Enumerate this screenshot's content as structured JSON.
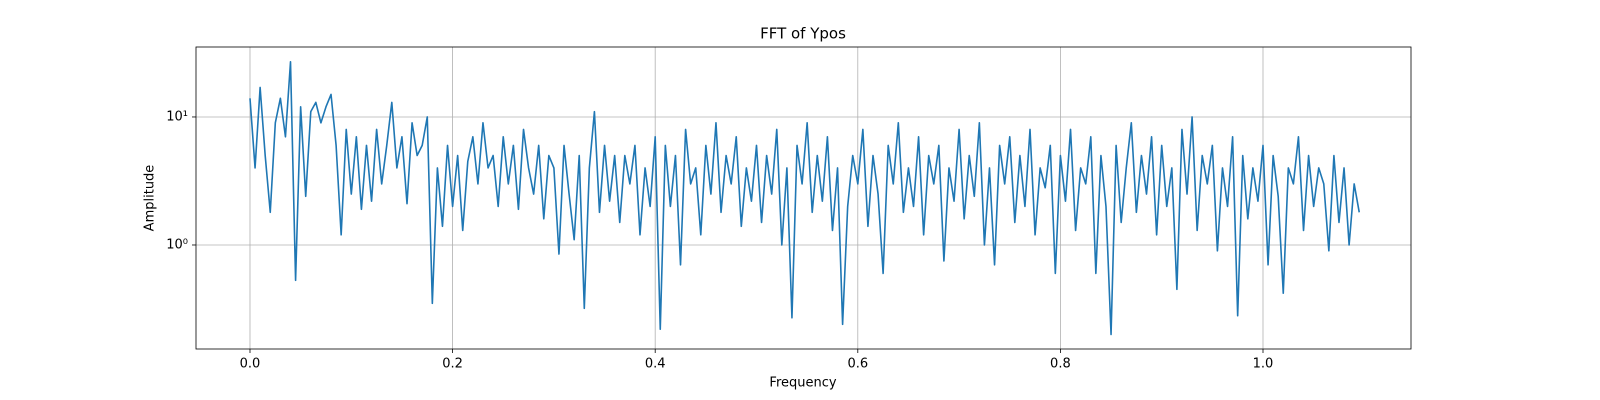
{
  "chart_data": {
    "type": "line",
    "title": "FFT of Ypos",
    "x_label": "Frequency",
    "y_label": "Amplitude",
    "color": "#1f77b4",
    "grid": true,
    "yscale": "log",
    "xlim": [
      -0.0533,
      1.1461
    ],
    "ylim": [
      0.154,
      35.2
    ],
    "xticks": [
      {
        "value": 0,
        "label": "0.0"
      },
      {
        "value": 0.2,
        "label": "0.2"
      },
      {
        "value": 0.4,
        "label": "0.4"
      },
      {
        "value": 0.6,
        "label": "0.6"
      },
      {
        "value": 0.8,
        "label": "0.8"
      },
      {
        "value": 1.0,
        "label": "1.0"
      }
    ],
    "yticks": [
      {
        "value": 1,
        "label": "10⁰"
      },
      {
        "value": 10,
        "label": "10¹"
      }
    ],
    "x": [
      0,
      0.005,
      0.01,
      0.015,
      0.02,
      0.025,
      0.03,
      0.035,
      0.04,
      0.045,
      0.05,
      0.055,
      0.06,
      0.065,
      0.07,
      0.075,
      0.08,
      0.085,
      0.09,
      0.095,
      0.1,
      0.105,
      0.11,
      0.115,
      0.12,
      0.125,
      0.13,
      0.135,
      0.14,
      0.145,
      0.15,
      0.155,
      0.16,
      0.165,
      0.17,
      0.175,
      0.18,
      0.185,
      0.19,
      0.195,
      0.2,
      0.205,
      0.21,
      0.215,
      0.22,
      0.225,
      0.23,
      0.235,
      0.24,
      0.245,
      0.25,
      0.255,
      0.26,
      0.265,
      0.27,
      0.275,
      0.28,
      0.285,
      0.29,
      0.295,
      0.3,
      0.305,
      0.31,
      0.315,
      0.32,
      0.325,
      0.33,
      0.335,
      0.34,
      0.345,
      0.35,
      0.355,
      0.36,
      0.365,
      0.37,
      0.375,
      0.38,
      0.385,
      0.39,
      0.395,
      0.4,
      0.405,
      0.41,
      0.415,
      0.42,
      0.425,
      0.43,
      0.435,
      0.44,
      0.445,
      0.45,
      0.455,
      0.46,
      0.465,
      0.47,
      0.475,
      0.48,
      0.485,
      0.49,
      0.495,
      0.5,
      0.505,
      0.51,
      0.515,
      0.52,
      0.525,
      0.53,
      0.535,
      0.54,
      0.545,
      0.55,
      0.555,
      0.56,
      0.565,
      0.57,
      0.575,
      0.58,
      0.585,
      0.59,
      0.595,
      0.6,
      0.605,
      0.61,
      0.615,
      0.62,
      0.625,
      0.63,
      0.635,
      0.64,
      0.645,
      0.65,
      0.655,
      0.66,
      0.665,
      0.67,
      0.675,
      0.68,
      0.685,
      0.69,
      0.695,
      0.7,
      0.705,
      0.71,
      0.715,
      0.72,
      0.725,
      0.73,
      0.735,
      0.74,
      0.745,
      0.75,
      0.755,
      0.76,
      0.765,
      0.77,
      0.775,
      0.78,
      0.785,
      0.79,
      0.795,
      0.8,
      0.805,
      0.81,
      0.815,
      0.82,
      0.825,
      0.83,
      0.835,
      0.84,
      0.845,
      0.85,
      0.855,
      0.86,
      0.865,
      0.87,
      0.875,
      0.88,
      0.885,
      0.89,
      0.895,
      0.9,
      0.905,
      0.91,
      0.915,
      0.92,
      0.925,
      0.93,
      0.935,
      0.94,
      0.945,
      0.95,
      0.955,
      0.96,
      0.965,
      0.97,
      0.975,
      0.98,
      0.985,
      0.99,
      0.995,
      1.0,
      1.005,
      1.01,
      1.015,
      1.02,
      1.025,
      1.03,
      1.035,
      1.04,
      1.045,
      1.05,
      1.055,
      1.06,
      1.065,
      1.07,
      1.075,
      1.08,
      1.085,
      1.09,
      1.095
    ],
    "values": [
      14,
      4,
      17,
      5,
      1.8,
      9,
      14,
      7,
      27,
      0.53,
      12,
      2.4,
      11,
      13,
      9,
      12,
      15,
      6,
      1.2,
      8,
      2.5,
      7,
      1.9,
      6,
      2.2,
      8,
      3,
      6,
      13,
      4,
      7,
      2.1,
      9,
      5,
      6,
      10,
      0.35,
      4,
      1.4,
      6,
      2,
      5,
      1.3,
      4.5,
      7,
      3,
      9,
      4,
      5,
      2,
      7,
      3,
      6,
      1.9,
      8,
      4,
      2.5,
      6,
      1.6,
      5,
      4,
      0.85,
      6,
      2.5,
      1.1,
      5,
      0.32,
      4,
      11,
      1.8,
      6,
      2.2,
      5,
      1.5,
      5,
      3,
      6,
      1.2,
      4,
      2,
      7,
      0.22,
      6,
      2,
      5,
      0.7,
      8,
      3,
      4,
      1.2,
      6,
      2.5,
      9,
      1.8,
      5,
      3,
      7,
      1.4,
      4,
      2.2,
      6,
      1.5,
      5,
      2.5,
      8,
      1,
      4,
      0.27,
      6,
      3,
      9,
      1.8,
      5,
      2.2,
      7,
      1.3,
      4,
      0.24,
      2,
      5,
      3,
      8,
      1.4,
      5,
      2.5,
      0.6,
      6,
      3,
      9,
      1.8,
      4,
      2,
      7,
      1.2,
      5,
      3,
      6,
      0.75,
      4,
      2.2,
      8,
      1.6,
      5,
      2.4,
      9,
      1,
      4,
      0.7,
      6,
      3,
      7,
      1.5,
      5,
      2,
      8,
      1.2,
      4,
      2.8,
      6,
      0.6,
      5,
      2.2,
      8,
      1.3,
      4,
      3,
      7,
      0.6,
      5,
      2,
      0.2,
      6,
      1.5,
      4,
      9,
      1.8,
      5,
      2.5,
      7,
      1.2,
      6,
      2,
      4,
      0.45,
      8,
      2.5,
      10,
      1.3,
      5,
      3,
      6,
      0.9,
      4,
      2,
      7,
      0.28,
      5,
      1.6,
      4,
      2.2,
      6,
      0.7,
      5,
      2.4,
      0.42,
      4,
      3,
      7,
      1.3,
      5,
      2,
      4,
      3,
      0.9,
      5,
      1.5,
      4,
      1,
      3,
      1.8
    ]
  }
}
